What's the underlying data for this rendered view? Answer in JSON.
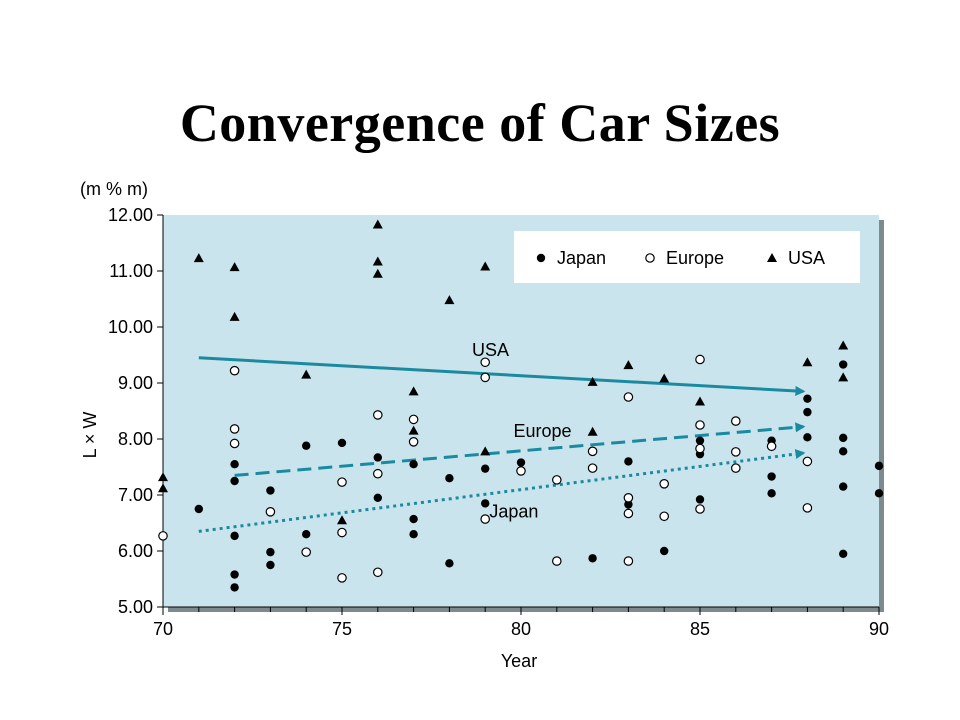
{
  "title": "Convergence of Car Sizes",
  "colors": {
    "plot_background": "#c9e4ec",
    "trend_line": "#1a8aa0",
    "marker": "#000000",
    "frame_shadow": "#7f8a8e"
  },
  "chart_data": {
    "type": "scatter",
    "title": "Convergence of Car Sizes",
    "xlabel": "Year",
    "ylabel": "L × W",
    "yunit": "(m % m)",
    "xlim": [
      70,
      90
    ],
    "ylim": [
      5,
      12
    ],
    "x_ticks": [
      "70",
      "75",
      "80",
      "85",
      "90"
    ],
    "y_ticks": [
      "5.00",
      "6.00",
      "7.00",
      "8.00",
      "9.00",
      "10.00",
      "11.00",
      "12.00"
    ],
    "legend_position": "top-right",
    "series": [
      {
        "name": "Japan",
        "marker": "filled-circle",
        "points": [
          [
            71,
            6.75
          ],
          [
            72,
            7.55
          ],
          [
            72,
            7.25
          ],
          [
            72,
            6.27
          ],
          [
            72,
            5.58
          ],
          [
            72,
            5.35
          ],
          [
            73,
            7.08
          ],
          [
            73,
            5.98
          ],
          [
            73,
            5.75
          ],
          [
            74,
            7.88
          ],
          [
            74,
            6.3
          ],
          [
            75,
            7.93
          ],
          [
            76,
            7.67
          ],
          [
            76,
            6.95
          ],
          [
            77,
            7.55
          ],
          [
            77,
            6.57
          ],
          [
            77,
            6.3
          ],
          [
            78,
            7.3
          ],
          [
            78,
            5.78
          ],
          [
            79,
            7.47
          ],
          [
            79,
            6.85
          ],
          [
            80,
            7.58
          ],
          [
            82,
            5.87
          ],
          [
            83,
            7.6
          ],
          [
            83,
            6.83
          ],
          [
            84,
            6.0
          ],
          [
            85,
            7.97
          ],
          [
            85,
            7.73
          ],
          [
            85,
            6.92
          ],
          [
            87,
            7.97
          ],
          [
            87,
            7.33
          ],
          [
            87,
            7.03
          ],
          [
            88,
            8.72
          ],
          [
            88,
            8.48
          ],
          [
            88,
            8.03
          ],
          [
            89,
            9.33
          ],
          [
            89,
            8.02
          ],
          [
            89,
            7.78
          ],
          [
            89,
            7.15
          ],
          [
            89,
            5.95
          ],
          [
            90,
            7.52
          ],
          [
            90,
            7.03
          ]
        ]
      },
      {
        "name": "Europe",
        "marker": "open-circle",
        "points": [
          [
            70,
            6.27
          ],
          [
            72,
            9.22
          ],
          [
            72,
            8.18
          ],
          [
            72,
            7.92
          ],
          [
            73,
            6.7
          ],
          [
            74,
            5.98
          ],
          [
            75,
            7.23
          ],
          [
            75,
            6.33
          ],
          [
            75,
            5.52
          ],
          [
            76,
            8.43
          ],
          [
            76,
            7.38
          ],
          [
            76,
            5.62
          ],
          [
            77,
            8.35
          ],
          [
            77,
            7.95
          ],
          [
            79,
            9.37
          ],
          [
            79,
            9.1
          ],
          [
            79,
            6.57
          ],
          [
            80,
            7.43
          ],
          [
            81,
            7.27
          ],
          [
            81,
            5.82
          ],
          [
            82,
            7.78
          ],
          [
            82,
            7.48
          ],
          [
            83,
            8.75
          ],
          [
            83,
            6.95
          ],
          [
            83,
            6.67
          ],
          [
            83,
            5.82
          ],
          [
            84,
            7.2
          ],
          [
            84,
            6.62
          ],
          [
            85,
            9.42
          ],
          [
            85,
            8.25
          ],
          [
            85,
            7.83
          ],
          [
            85,
            6.75
          ],
          [
            86,
            8.32
          ],
          [
            86,
            7.77
          ],
          [
            86,
            7.48
          ],
          [
            87,
            7.87
          ],
          [
            88,
            7.6
          ],
          [
            88,
            6.77
          ]
        ]
      },
      {
        "name": "USA",
        "marker": "filled-triangle",
        "points": [
          [
            70,
            7.32
          ],
          [
            70,
            7.12
          ],
          [
            71,
            11.23
          ],
          [
            72,
            11.07
          ],
          [
            72,
            10.18
          ],
          [
            74,
            9.15
          ],
          [
            75,
            6.55
          ],
          [
            76,
            11.83
          ],
          [
            76,
            11.17
          ],
          [
            76,
            10.95
          ],
          [
            77,
            8.85
          ],
          [
            77,
            8.15
          ],
          [
            78,
            10.48
          ],
          [
            79,
            11.08
          ],
          [
            79,
            7.78
          ],
          [
            82,
            9.02
          ],
          [
            82,
            8.13
          ],
          [
            83,
            9.32
          ],
          [
            84,
            9.08
          ],
          [
            85,
            8.67
          ],
          [
            88,
            9.37
          ],
          [
            89,
            9.67
          ],
          [
            89,
            9.1
          ]
        ]
      }
    ],
    "trend_lines": [
      {
        "name": "USA",
        "label": "USA",
        "style": "solid",
        "from": [
          71,
          9.45
        ],
        "to": [
          88,
          8.85
        ]
      },
      {
        "name": "Europe",
        "label": "Europe",
        "style": "dashed",
        "from": [
          72,
          7.35
        ],
        "to": [
          88,
          8.22
        ]
      },
      {
        "name": "Japan",
        "label": "Japan",
        "style": "dotted",
        "from": [
          71,
          6.35
        ],
        "to": [
          88,
          7.75
        ]
      }
    ]
  }
}
